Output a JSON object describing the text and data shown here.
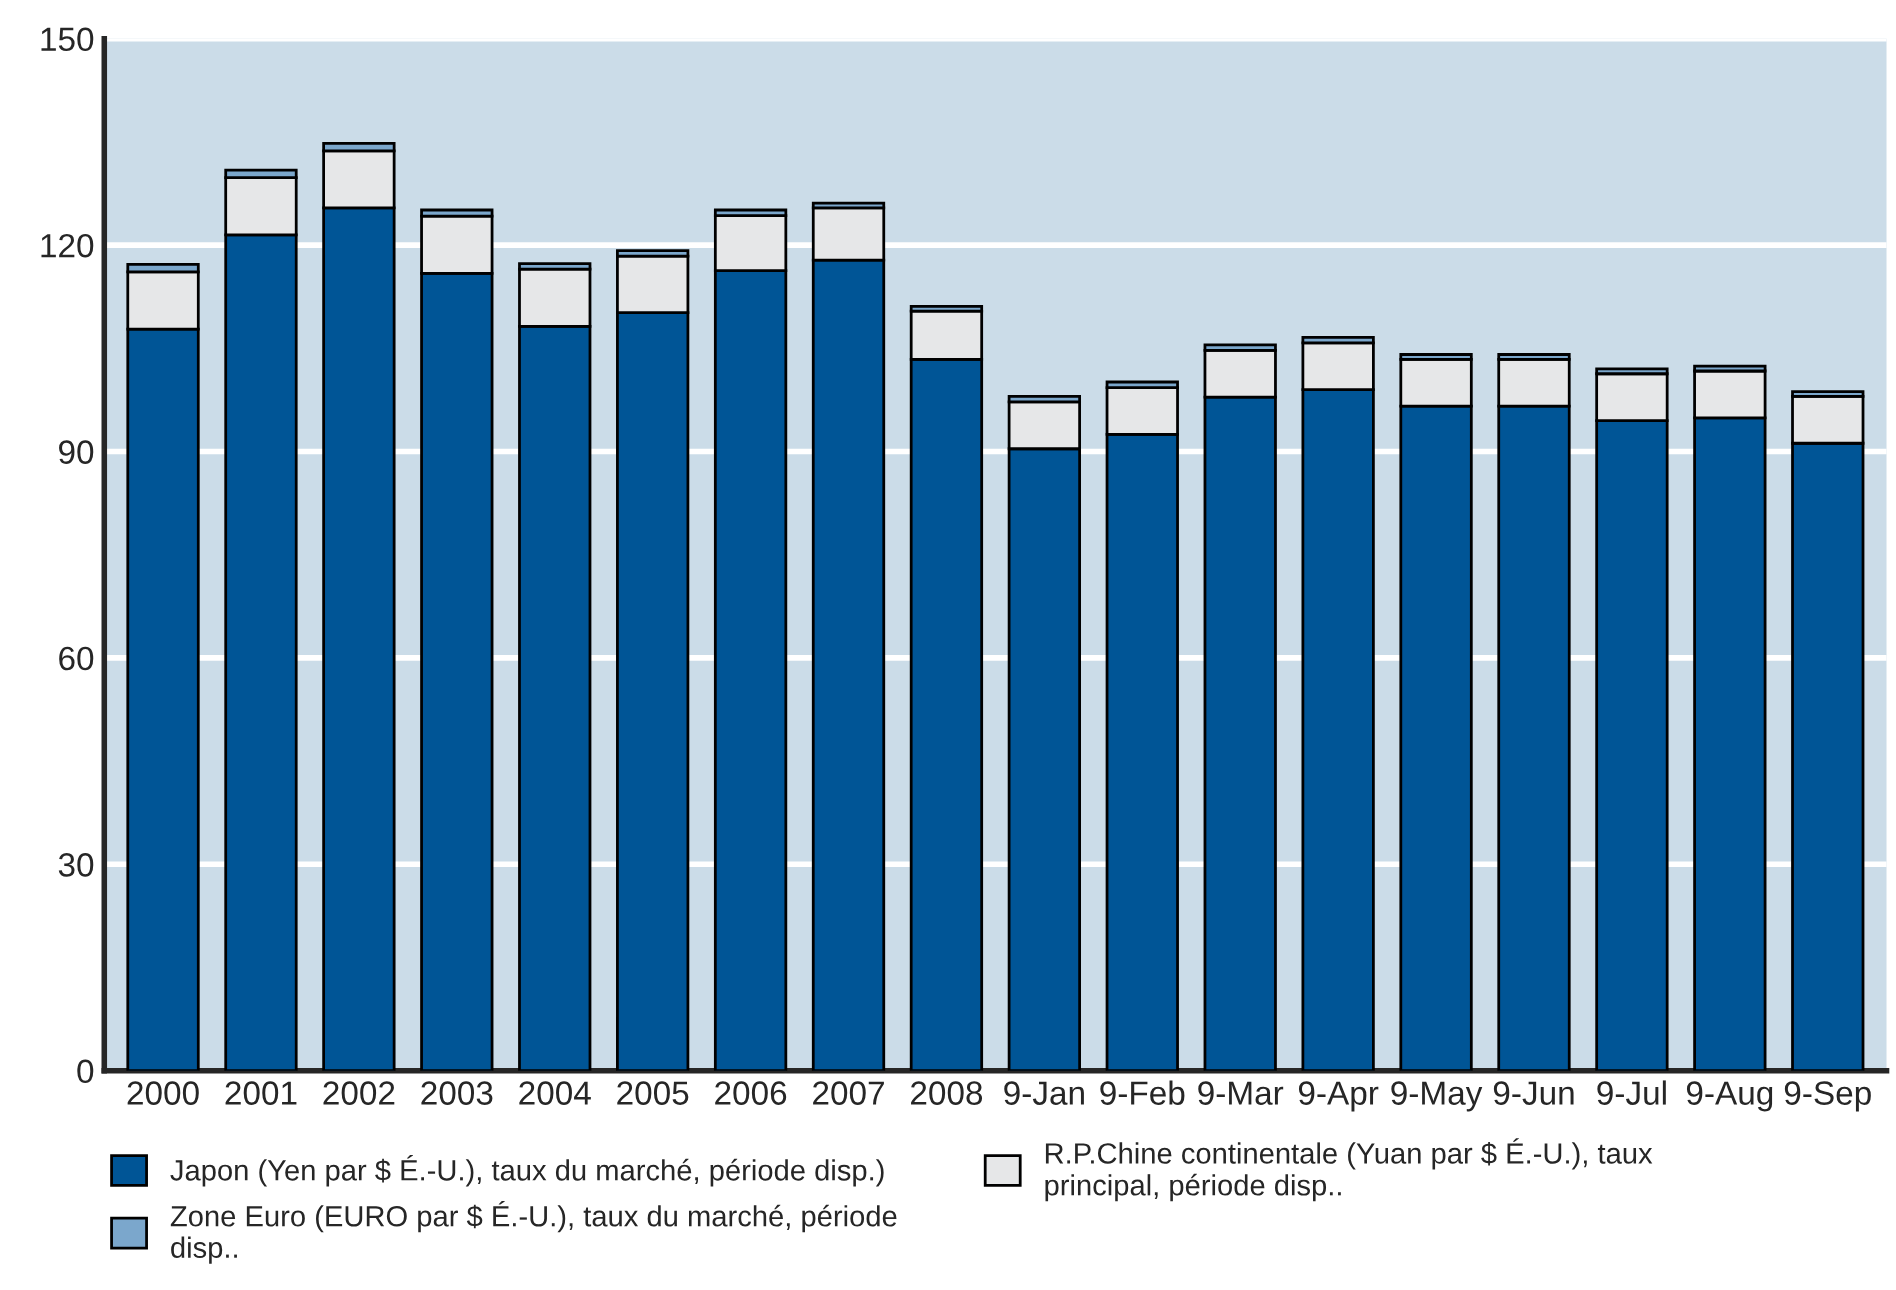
{
  "chart_data": {
    "type": "bar",
    "stacked": true,
    "categories": [
      "2000",
      "2001",
      "2002",
      "2003",
      "2004",
      "2005",
      "2006",
      "2007",
      "2008",
      "9-Jan",
      "9-Feb",
      "9-Mar",
      "9-Apr",
      "9-May",
      "9-Jun",
      "9-Jul",
      "9-Aug",
      "9-Sep"
    ],
    "series": [
      {
        "name": "Japon (Yen par $ É.-U.), taux du marché, période disp.)",
        "color": "#005596",
        "values": [
          107.8,
          121.5,
          125.4,
          115.9,
          108.2,
          110.2,
          116.3,
          117.8,
          103.4,
          90.4,
          92.5,
          97.9,
          99.0,
          96.6,
          96.6,
          94.5,
          94.9,
          91.2
        ]
      },
      {
        "name": "R.P.Chine continentale (Yuan par $ É.-U.), taux principal, période disp..",
        "color": "#e6e7e8",
        "values": [
          8.3,
          8.3,
          8.3,
          8.3,
          8.3,
          8.2,
          8.0,
          7.6,
          7.0,
          6.8,
          6.8,
          6.8,
          6.8,
          6.8,
          6.8,
          6.8,
          6.8,
          6.8
        ]
      },
      {
        "name": "Zone Euro (EURO par $ É.-U.), taux du marché, période disp..",
        "color": "#7ba7cc",
        "values": [
          1.1,
          1.1,
          1.1,
          0.9,
          0.8,
          0.8,
          0.8,
          0.7,
          0.7,
          0.8,
          0.8,
          0.8,
          0.8,
          0.7,
          0.7,
          0.7,
          0.7,
          0.7
        ]
      }
    ],
    "ylim": [
      0,
      150
    ],
    "yticks": [
      0,
      30,
      60,
      90,
      120,
      150
    ],
    "grid": "y",
    "legend": "bottom"
  }
}
